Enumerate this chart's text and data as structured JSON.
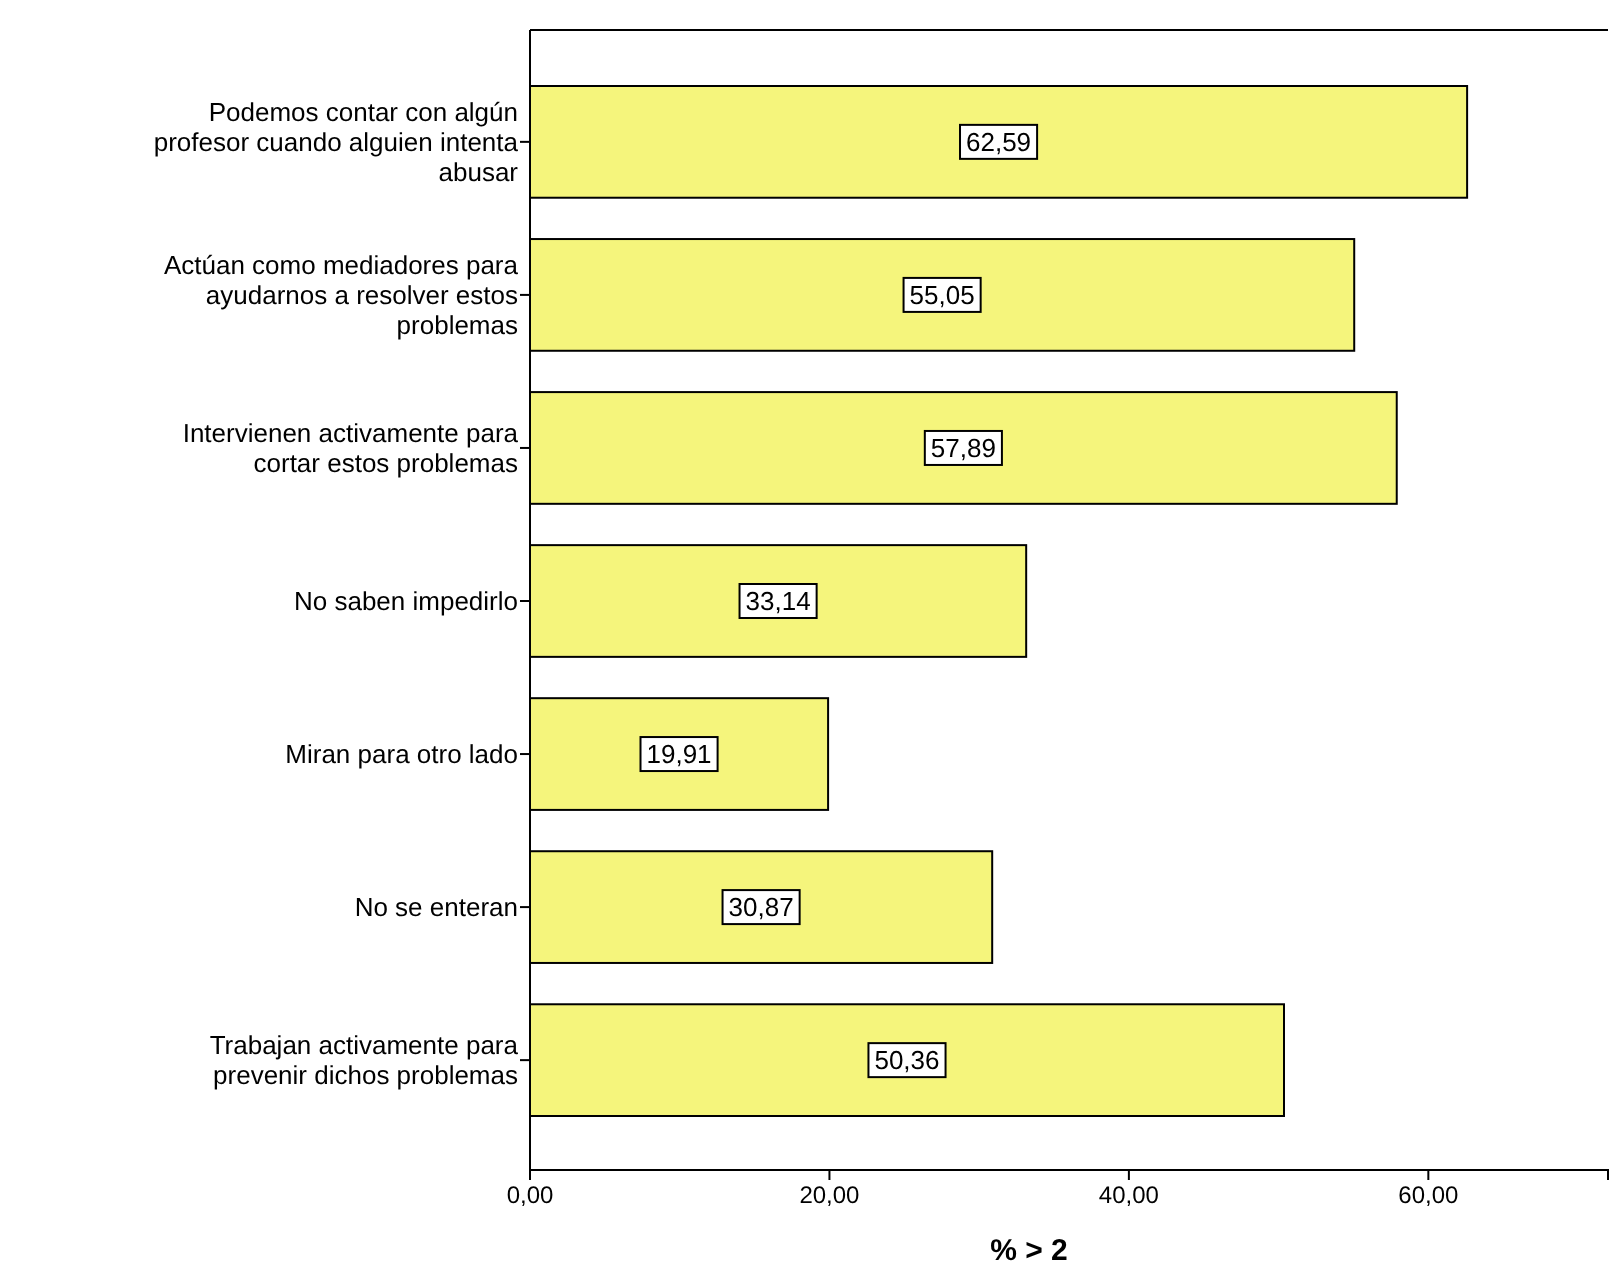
{
  "chart_data": {
    "type": "bar",
    "orientation": "horizontal",
    "xlabel": "% > 2",
    "categories": [
      "Podemos contar con algún profesor cuando alguien intenta abusar",
      "Actúan como mediadores para ayudarnos a resolver estos problemas",
      "Intervienen activamente para cortar estos problemas",
      "No saben impedirlo",
      "Miran para otro lado",
      "No se enteran",
      "Trabajan activamente para prevenir dichos problemas"
    ],
    "values": [
      62.59,
      55.05,
      57.89,
      33.14,
      19.91,
      30.87,
      50.36
    ],
    "value_labels": [
      "62,59",
      "55,05",
      "57,89",
      "33,14",
      "19,91",
      "30,87",
      "50,36"
    ],
    "color": "#f5f57c",
    "xlim": [
      0,
      72
    ],
    "xticks": [
      {
        "value": 0,
        "label": "0,00"
      },
      {
        "value": 20,
        "label": "20,00"
      },
      {
        "value": 40,
        "label": "40,00"
      },
      {
        "value": 60,
        "label": "60,00"
      }
    ],
    "grid": false
  }
}
